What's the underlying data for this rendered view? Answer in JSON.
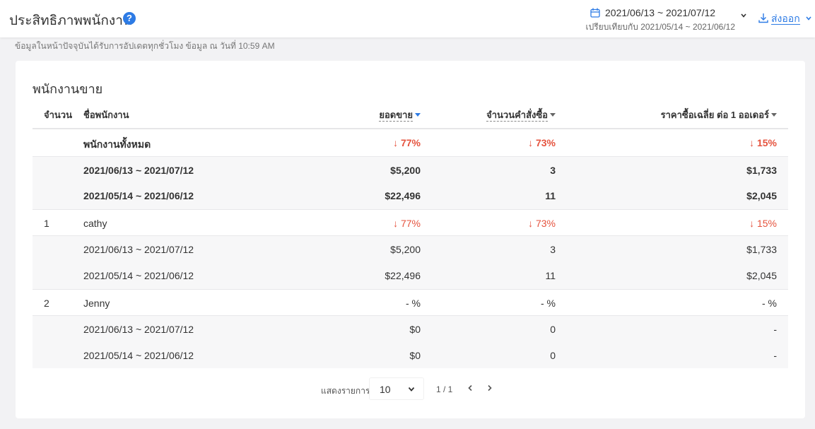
{
  "header": {
    "title": "ประสิทธิภาพพนักงาน",
    "help": "?",
    "date_range": "2021/06/13 ~ 2021/07/12",
    "compare_range": "เปรียบเทียบกับ 2021/05/14 ~ 2021/06/12",
    "export_label": "ส่งออก"
  },
  "update_note": "ข้อมูลในหน้าปัจจุบันได้รับการอัปเดตทุกชั่วโมง ข้อมูล ณ วันที่ 10:59 AM",
  "card": {
    "title": "พนักงานขาย",
    "columns": {
      "index": "จำนวน",
      "name": "ชื่อพนักงาน",
      "sales": "ยอดขาย",
      "orders": "จำนวนคำสั่งซื้อ",
      "avg": "ราคาซื้อเฉลี่ย ต่อ 1 ออเดอร์"
    },
    "rows": [
      {
        "index": "",
        "name": "พนักงานทั้งหมด",
        "sales": "↓ 77%",
        "orders": "↓ 73%",
        "avg": "↓ 15%"
      },
      {
        "index": "",
        "name": "2021/06/13 ~ 2021/07/12",
        "sales": "$5,200",
        "orders": "3",
        "avg": "$1,733"
      },
      {
        "index": "",
        "name": "2021/05/14 ~ 2021/06/12",
        "sales": "$22,496",
        "orders": "11",
        "avg": "$2,045"
      },
      {
        "index": "1",
        "name": "cathy",
        "sales": "↓ 77%",
        "orders": "↓ 73%",
        "avg": "↓ 15%"
      },
      {
        "index": "",
        "name": "2021/06/13 ~ 2021/07/12",
        "sales": "$5,200",
        "orders": "3",
        "avg": "$1,733"
      },
      {
        "index": "",
        "name": "2021/05/14 ~ 2021/06/12",
        "sales": "$22,496",
        "orders": "11",
        "avg": "$2,045"
      },
      {
        "index": "2",
        "name": "Jenny",
        "sales": "- %",
        "orders": "- %",
        "avg": "- %"
      },
      {
        "index": "",
        "name": "2021/06/13 ~ 2021/07/12",
        "sales": "$0",
        "orders": "0",
        "avg": "-"
      },
      {
        "index": "",
        "name": "2021/05/14 ~ 2021/06/12",
        "sales": "$0",
        "orders": "0",
        "avg": "-"
      }
    ],
    "pager": {
      "label": "แสดงรายการ",
      "page_size": "10",
      "page_info": "1 / 1"
    }
  },
  "colors": {
    "accent": "#2d7be5",
    "decrease": "#e5533e"
  }
}
